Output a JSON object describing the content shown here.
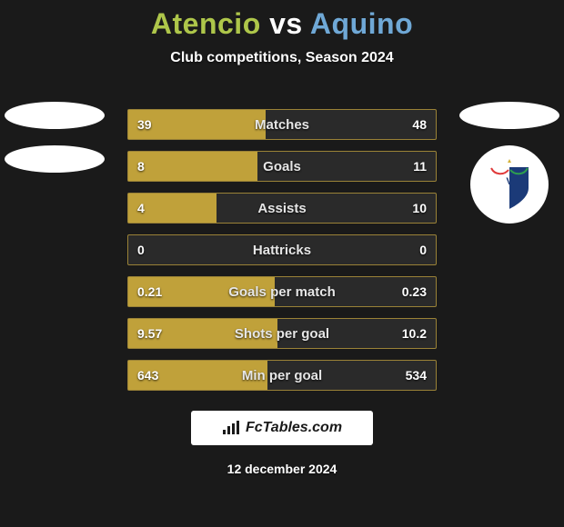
{
  "background_color": "#1a1a1a",
  "title": {
    "player_a": "Atencio",
    "vs": "vs",
    "player_b": "Aquino",
    "color_a": "#aec64a",
    "color_vs": "#ffffff",
    "color_b": "#6fa8d6",
    "fontsize": 32
  },
  "subtitle": "Club competitions, Season 2024",
  "avatars": {
    "oval_color": "#ffffff",
    "left_count": 2,
    "right_has_badge": true,
    "badge_shield_main": "#1b3a78",
    "badge_stripe_a": "#e03a3a",
    "badge_stripe_b": "#2e9e4f",
    "badge_star": "#d4b23a"
  },
  "bars": {
    "bar_bg": "#2a2a2a",
    "bar_border": "#9a8237",
    "bar_fill": "#c0a13a",
    "text_color": "#e6e6e6",
    "rows": [
      {
        "label": "Matches",
        "left": "39",
        "right": "48",
        "fill_pct": 44.8
      },
      {
        "label": "Goals",
        "left": "8",
        "right": "11",
        "fill_pct": 42.1
      },
      {
        "label": "Assists",
        "left": "4",
        "right": "10",
        "fill_pct": 28.6
      },
      {
        "label": "Hattricks",
        "left": "0",
        "right": "0",
        "fill_pct": 0
      },
      {
        "label": "Goals per match",
        "left": "0.21",
        "right": "0.23",
        "fill_pct": 47.7
      },
      {
        "label": "Shots per goal",
        "left": "9.57",
        "right": "10.2",
        "fill_pct": 48.4
      },
      {
        "label": "Min per goal",
        "left": "643",
        "right": "534",
        "fill_pct": 45.4
      }
    ]
  },
  "footer": {
    "site": "FcTables.com",
    "date": "12 december 2024"
  }
}
